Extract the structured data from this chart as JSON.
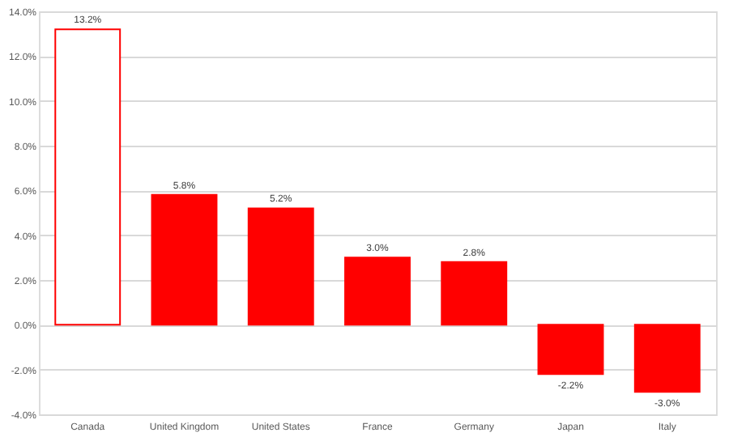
{
  "chart_data": {
    "type": "bar",
    "categories": [
      "Canada",
      "United Kingdom",
      "United States",
      "France",
      "Germany",
      "Japan",
      "Italy"
    ],
    "values": [
      13.2,
      5.8,
      5.2,
      3.0,
      2.8,
      -2.2,
      -3.0
    ],
    "value_labels": [
      "13.2%",
      "5.8%",
      "5.2%",
      "3.0%",
      "2.8%",
      "-2.2%",
      "-3.0%"
    ],
    "colors": [
      "#ffffff",
      "#ff0000",
      "#ff0000",
      "#ff0000",
      "#ff0000",
      "#ff0000",
      "#ff0000"
    ],
    "color": "#ff0000",
    "ylim": [
      -4,
      14
    ],
    "yticks": [
      {
        "value": -4,
        "label": "-4.0%"
      },
      {
        "value": -2,
        "label": "-2.0%"
      },
      {
        "value": 0,
        "label": "0.0%"
      },
      {
        "value": 2,
        "label": "2.0%"
      },
      {
        "value": 4,
        "label": "4.0%"
      },
      {
        "value": 6,
        "label": "6.0%"
      },
      {
        "value": 8,
        "label": "8.0%"
      },
      {
        "value": 10,
        "label": "10.0%"
      },
      {
        "value": 12,
        "label": "12.0%"
      },
      {
        "value": 14,
        "label": "14.0%"
      }
    ],
    "grid": "y"
  }
}
